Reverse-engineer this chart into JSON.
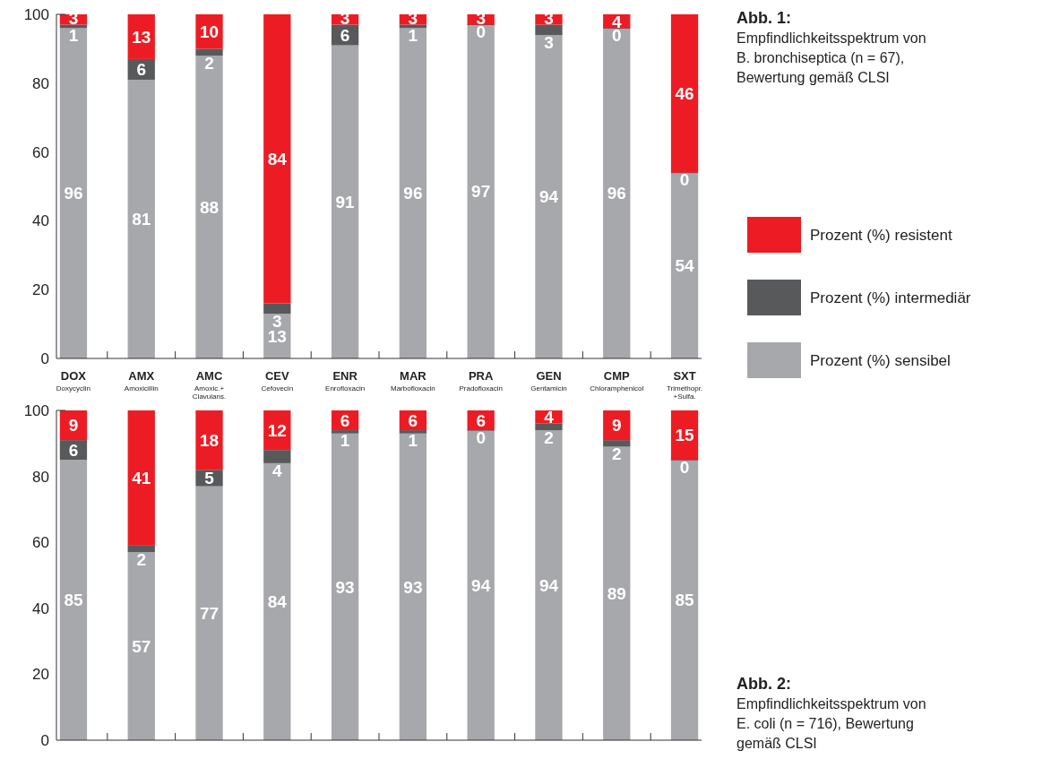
{
  "chart_data": [
    {
      "type": "bar",
      "annotations": [
        "Abb. 1:",
        "Empfindlichkeitsspektrum von B. bronchiseptica (n = 67), Bewertung gemäß CLSI"
      ],
      "stacked": true,
      "data_labels": true,
      "legend": "right",
      "grid": false,
      "categories": [
        "DOX\nDoxycyclin",
        "AMX\nAmoxicillin",
        "AMC\nAmoxic.+\nClavulans.",
        "CEV\nCefovecin",
        "ENR\nEnrofloxacin",
        "MAR\nMarbofloxacin",
        "PRA\nPradofloxacin",
        "GEN\nGentamicin",
        "CMP\nChloramphenicol",
        "SXT\nTrimethopr.\n+Sulfa."
      ],
      "ylim": [
        0,
        100
      ],
      "yticks": [
        0,
        20,
        40,
        60,
        80,
        100
      ],
      "series": [
        {
          "name": "Prozent (%) sensibel",
          "color": "#a7a8ab",
          "values": [
            96,
            81,
            88,
            13,
            91,
            96,
            97,
            94,
            96,
            54
          ]
        },
        {
          "name": "Prozent (%) intermediär",
          "color": "#58595b",
          "values": [
            1,
            6,
            2,
            3,
            6,
            1,
            0,
            3,
            0,
            0
          ]
        },
        {
          "name": "Prozent (%) resistent",
          "color": "#ed1c24",
          "values": [
            3,
            13,
            10,
            84,
            3,
            3,
            3,
            3,
            4,
            46
          ]
        }
      ]
    },
    {
      "type": "bar",
      "annotations": [
        "Abb. 2:",
        "Empfindlichkeitsspektrum von E. coli (n = 716), Bewertung gemäß CLSI"
      ],
      "stacked": true,
      "data_labels": true,
      "grid": false,
      "categories": [
        null,
        null,
        null,
        null,
        null,
        null,
        null,
        null,
        null,
        null
      ],
      "ylim": [
        0,
        100
      ],
      "yticks": [
        0,
        20,
        40,
        60,
        80,
        100
      ],
      "series": [
        {
          "color": "#a7a8ab",
          "values": [
            85,
            57,
            77,
            84,
            93,
            93,
            94,
            94,
            89,
            85
          ]
        },
        {
          "color": "#58595b",
          "values": [
            6,
            2,
            5,
            4,
            1,
            1,
            0,
            2,
            2,
            0
          ]
        },
        {
          "color": "#ed1c24",
          "values": [
            9,
            41,
            18,
            12,
            6,
            6,
            6,
            4,
            9,
            15
          ]
        }
      ]
    }
  ]
}
